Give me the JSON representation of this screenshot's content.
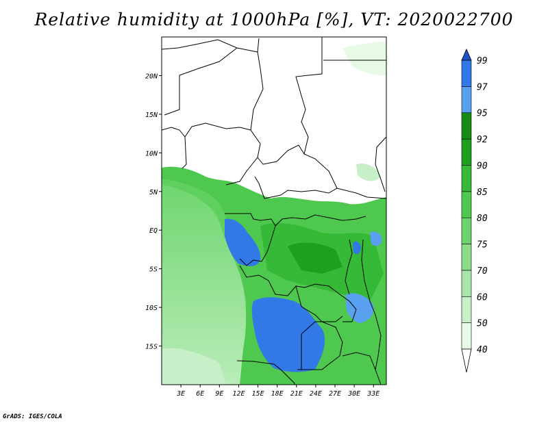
{
  "title": "Relative humidity at 1000hPa [%], VT: 2020022700",
  "credit": "GrADS: IGES/COLA",
  "map": {
    "lon_labels": [
      "3E",
      "6E",
      "9E",
      "12E",
      "15E",
      "18E",
      "21E",
      "24E",
      "27E",
      "30E",
      "33E"
    ],
    "lon_values": [
      3,
      6,
      9,
      12,
      15,
      18,
      21,
      24,
      27,
      30,
      33
    ],
    "lat_labels": [
      "20N",
      "15N",
      "10N",
      "5N",
      "EQ",
      "5S",
      "10S",
      "15S"
    ],
    "lat_values": [
      20,
      15,
      10,
      5,
      0,
      -5,
      -10,
      -15
    ],
    "lon_range": [
      0,
      35
    ],
    "lat_range": [
      -20,
      25
    ]
  },
  "colorbar": {
    "levels": [
      "40",
      "50",
      "60",
      "70",
      "75",
      "80",
      "85",
      "90",
      "92",
      "95",
      "97",
      "99"
    ],
    "colors": [
      "#ffffff",
      "#e6fae6",
      "#c8f0c8",
      "#aae6aa",
      "#8cdc8c",
      "#6ed26e",
      "#4ec84e",
      "#36b936",
      "#1f9f1f",
      "#168c16",
      "#5aa0f0",
      "#3278e6",
      "#1e50c8"
    ],
    "low_end_color": "#ffffff",
    "high_end_color": "#1e50c8"
  }
}
